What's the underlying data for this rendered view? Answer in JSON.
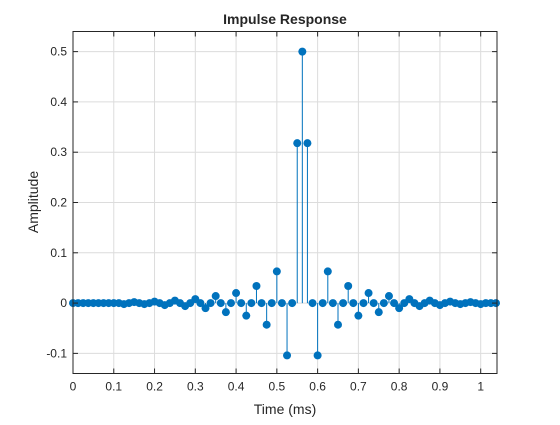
{
  "chart_data": {
    "type": "stem",
    "title": "Impulse Response",
    "xlabel": "Time (ms)",
    "ylabel": "Amplitude",
    "xlim": [
      0,
      1.04
    ],
    "ylim": [
      -0.14,
      0.54
    ],
    "xticks": [
      0,
      0.1,
      0.2,
      0.3,
      0.4,
      0.5,
      0.6,
      0.7,
      0.8,
      0.9,
      1
    ],
    "xtick_labels": [
      "0",
      "0.1",
      "0.2",
      "0.3",
      "0.4",
      "0.5",
      "0.6",
      "0.7",
      "0.8",
      "0.9",
      "1"
    ],
    "yticks": [
      -0.1,
      0,
      0.1,
      0.2,
      0.3,
      0.4,
      0.5
    ],
    "ytick_labels": [
      "-0.1",
      "0",
      "0.1",
      "0.2",
      "0.3",
      "0.4",
      "0.5"
    ],
    "grid": true,
    "color": "#0072BD",
    "series": [
      {
        "sample_interval_ms": 0.0125,
        "x": [
          0,
          0.0125,
          0.025,
          0.0375,
          0.05,
          0.0625,
          0.075,
          0.0875,
          0.1,
          0.1125,
          0.125,
          0.1375,
          0.15,
          0.1625,
          0.175,
          0.1875,
          0.2,
          0.2125,
          0.225,
          0.2375,
          0.25,
          0.2625,
          0.275,
          0.2875,
          0.3,
          0.3125,
          0.325,
          0.3375,
          0.35,
          0.3625,
          0.375,
          0.3875,
          0.4,
          0.4125,
          0.425,
          0.4375,
          0.45,
          0.4625,
          0.475,
          0.4875,
          0.5,
          0.5125,
          0.525,
          0.5375,
          0.55,
          0.5625,
          0.575,
          0.5875,
          0.6,
          0.6125,
          0.625,
          0.6375,
          0.65,
          0.6625,
          0.675,
          0.6875,
          0.7,
          0.7125,
          0.725,
          0.7375,
          0.75,
          0.7625,
          0.775,
          0.7875,
          0.8,
          0.8125,
          0.825,
          0.8375,
          0.85,
          0.8625,
          0.875,
          0.8875,
          0.9,
          0.9125,
          0.925,
          0.9375,
          0.95,
          0.9625,
          0.975,
          0.9875,
          1,
          1.0125,
          1.025,
          1.0375
        ],
        "values": [
          0,
          0,
          0,
          0,
          0,
          0,
          0,
          0,
          0,
          0,
          -0.002,
          0,
          0.002,
          0,
          -0.002,
          0,
          0.003,
          0,
          -0.004,
          0,
          0.005,
          0,
          -0.006,
          0,
          0.008,
          0,
          -0.01,
          0,
          0.014,
          0,
          -0.018,
          0,
          0.02,
          0,
          -0.025,
          0,
          0.034,
          0,
          -0.043,
          0,
          0.063,
          0,
          -0.104,
          0,
          0.318,
          0.5,
          0.318,
          0,
          -0.104,
          0,
          0.063,
          0,
          -0.043,
          0,
          0.034,
          0,
          -0.025,
          0,
          0.02,
          0,
          -0.018,
          0,
          0.014,
          0,
          -0.01,
          0,
          0.008,
          0,
          -0.006,
          0,
          0.005,
          0,
          -0.004,
          0,
          0.003,
          0,
          -0.002,
          0,
          0.002,
          0,
          -0.002,
          0,
          0,
          0
        ]
      }
    ]
  }
}
